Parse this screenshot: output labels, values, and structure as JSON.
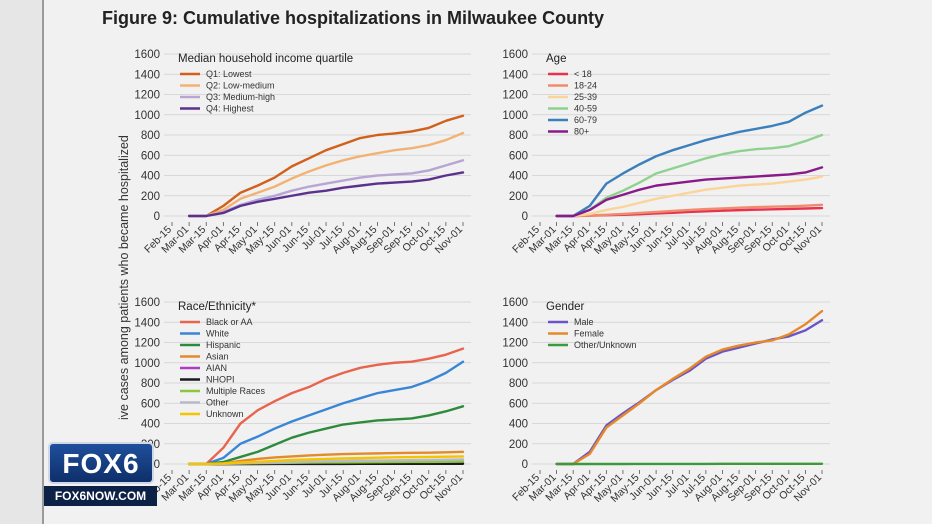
{
  "figure_title": "Figure 9: Cumulative hospitalizations in Milwaukee County",
  "y_axis_label": "ive cases among patients who became hospitalized",
  "logo": {
    "main": "FOX6",
    "sub": "FOX6NOW.COM"
  },
  "x_ticks": [
    "Feb-15",
    "Mar-01",
    "Mar-15",
    "Apr-01",
    "Apr-15",
    "May-01",
    "May-15",
    "Jun-01",
    "Jun-15",
    "Jul-01",
    "Jul-15",
    "Aug-01",
    "Aug-15",
    "Sep-01",
    "Sep-15",
    "Oct-01",
    "Oct-15",
    "Nov-01"
  ],
  "y_ticks": [
    0,
    200,
    400,
    600,
    800,
    1000,
    1200,
    1400,
    1600
  ],
  "chart_data": [
    {
      "type": "line",
      "legend_title": "Median household income quartile",
      "ylim": [
        0,
        1600
      ],
      "legend_position": "top-left",
      "grid": true,
      "series": [
        {
          "name": "Q1: Lowest",
          "color": "#d2601a",
          "x": [
            1,
            2,
            3,
            4,
            5,
            6,
            7,
            8,
            9,
            10,
            11,
            12,
            13,
            14,
            15,
            16,
            17
          ],
          "y": [
            0,
            0,
            100,
            230,
            300,
            380,
            490,
            570,
            650,
            710,
            770,
            800,
            815,
            835,
            870,
            940,
            990
          ]
        },
        {
          "name": "Q2: Low-medium",
          "color": "#f2b273",
          "x": [
            1,
            2,
            3,
            4,
            5,
            6,
            7,
            8,
            9,
            10,
            11,
            12,
            13,
            14,
            15,
            16,
            17
          ],
          "y": [
            0,
            0,
            60,
            170,
            230,
            290,
            370,
            440,
            500,
            550,
            590,
            620,
            650,
            670,
            700,
            750,
            820
          ]
        },
        {
          "name": "Q3: Medium-high",
          "color": "#b7a6d4",
          "x": [
            1,
            2,
            3,
            4,
            5,
            6,
            7,
            8,
            9,
            10,
            11,
            12,
            13,
            14,
            15,
            16,
            17
          ],
          "y": [
            0,
            0,
            40,
            110,
            160,
            200,
            250,
            290,
            320,
            350,
            380,
            400,
            410,
            420,
            450,
            500,
            550
          ]
        },
        {
          "name": "Q4: Highest",
          "color": "#5a318c",
          "x": [
            1,
            2,
            3,
            4,
            5,
            6,
            7,
            8,
            9,
            10,
            11,
            12,
            13,
            14,
            15,
            16,
            17
          ],
          "y": [
            0,
            0,
            30,
            100,
            140,
            170,
            200,
            230,
            250,
            280,
            300,
            320,
            330,
            340,
            360,
            400,
            430
          ]
        }
      ]
    },
    {
      "type": "line",
      "legend_title": "Age",
      "ylim": [
        0,
        1600
      ],
      "legend_position": "top-left",
      "grid": true,
      "series": [
        {
          "name": "< 18",
          "color": "#e6334f",
          "x": [
            1,
            2,
            3,
            4,
            5,
            6,
            7,
            8,
            9,
            10,
            11,
            12,
            13,
            14,
            15,
            16,
            17
          ],
          "y": [
            0,
            0,
            3,
            8,
            12,
            18,
            25,
            32,
            40,
            46,
            52,
            58,
            62,
            66,
            70,
            74,
            78
          ]
        },
        {
          "name": "18-24",
          "color": "#f08c6e",
          "x": [
            1,
            2,
            3,
            4,
            5,
            6,
            7,
            8,
            9,
            10,
            11,
            12,
            13,
            14,
            15,
            16,
            17
          ],
          "y": [
            0,
            0,
            5,
            12,
            20,
            30,
            40,
            50,
            60,
            68,
            75,
            82,
            88,
            92,
            96,
            102,
            110
          ]
        },
        {
          "name": "25-39",
          "color": "#fbd49a",
          "x": [
            1,
            2,
            3,
            4,
            5,
            6,
            7,
            8,
            9,
            10,
            11,
            12,
            13,
            14,
            15,
            16,
            17
          ],
          "y": [
            0,
            0,
            20,
            60,
            90,
            130,
            170,
            200,
            230,
            260,
            280,
            300,
            310,
            320,
            340,
            360,
            390
          ]
        },
        {
          "name": "40-59",
          "color": "#8fd18f",
          "x": [
            1,
            2,
            3,
            4,
            5,
            6,
            7,
            8,
            9,
            10,
            11,
            12,
            13,
            14,
            15,
            16,
            17
          ],
          "y": [
            0,
            0,
            60,
            180,
            250,
            330,
            420,
            470,
            520,
            570,
            610,
            640,
            660,
            670,
            690,
            740,
            800
          ]
        },
        {
          "name": "60-79",
          "color": "#3b7fbd",
          "x": [
            1,
            2,
            3,
            4,
            5,
            6,
            7,
            8,
            9,
            10,
            11,
            12,
            13,
            14,
            15,
            16,
            17
          ],
          "y": [
            0,
            0,
            100,
            320,
            420,
            510,
            590,
            650,
            700,
            750,
            790,
            830,
            860,
            890,
            930,
            1020,
            1090
          ]
        },
        {
          "name": "80+",
          "color": "#8a1a8a",
          "x": [
            1,
            2,
            3,
            4,
            5,
            6,
            7,
            8,
            9,
            10,
            11,
            12,
            13,
            14,
            15,
            16,
            17
          ],
          "y": [
            0,
            0,
            60,
            160,
            210,
            260,
            300,
            320,
            340,
            360,
            370,
            380,
            390,
            400,
            410,
            430,
            480
          ]
        }
      ]
    },
    {
      "type": "line",
      "legend_title": "Race/Ethnicity*",
      "ylim": [
        0,
        1600
      ],
      "legend_position": "top-left",
      "grid": true,
      "series": [
        {
          "name": "Black or AA",
          "color": "#e8644f",
          "x": [
            1,
            2,
            3,
            4,
            5,
            6,
            7,
            8,
            9,
            10,
            11,
            12,
            13,
            14,
            15,
            16,
            17
          ],
          "y": [
            0,
            0,
            160,
            400,
            530,
            620,
            700,
            760,
            840,
            900,
            950,
            980,
            1000,
            1010,
            1040,
            1080,
            1140
          ]
        },
        {
          "name": "White",
          "color": "#3a86d6",
          "x": [
            1,
            2,
            3,
            4,
            5,
            6,
            7,
            8,
            9,
            10,
            11,
            12,
            13,
            14,
            15,
            16,
            17
          ],
          "y": [
            0,
            0,
            60,
            200,
            270,
            350,
            420,
            480,
            540,
            600,
            650,
            700,
            730,
            760,
            820,
            900,
            1010
          ]
        },
        {
          "name": "Hispanic",
          "color": "#2e8b3e",
          "x": [
            1,
            2,
            3,
            4,
            5,
            6,
            7,
            8,
            9,
            10,
            11,
            12,
            13,
            14,
            15,
            16,
            17
          ],
          "y": [
            0,
            0,
            20,
            70,
            120,
            190,
            260,
            310,
            350,
            390,
            410,
            430,
            440,
            450,
            480,
            520,
            570
          ]
        },
        {
          "name": "Asian",
          "color": "#e38b2a",
          "x": [
            1,
            2,
            3,
            4,
            5,
            6,
            7,
            8,
            9,
            10,
            11,
            12,
            13,
            14,
            15,
            16,
            17
          ],
          "y": [
            0,
            0,
            5,
            30,
            50,
            65,
            75,
            85,
            92,
            98,
            102,
            105,
            108,
            110,
            112,
            115,
            120
          ]
        },
        {
          "name": "AIAN",
          "color": "#b03cc4",
          "x": [
            1,
            2,
            3,
            4,
            5,
            6,
            7,
            8,
            9,
            10,
            11,
            12,
            13,
            14,
            15,
            16,
            17
          ],
          "y": [
            0,
            0,
            0,
            1,
            2,
            3,
            4,
            5,
            5,
            6,
            6,
            7,
            7,
            8,
            8,
            9,
            10
          ]
        },
        {
          "name": "NHOPI",
          "color": "#1a1a1a",
          "x": [
            1,
            2,
            3,
            4,
            5,
            6,
            7,
            8,
            9,
            10,
            11,
            12,
            13,
            14,
            15,
            16,
            17
          ],
          "y": [
            0,
            0,
            0,
            0,
            0,
            1,
            1,
            1,
            1,
            1,
            2,
            2,
            2,
            2,
            2,
            2,
            2
          ]
        },
        {
          "name": "Multiple Races",
          "color": "#8cc63f",
          "x": [
            1,
            2,
            3,
            4,
            5,
            6,
            7,
            8,
            9,
            10,
            11,
            12,
            13,
            14,
            15,
            16,
            17
          ],
          "y": [
            0,
            0,
            2,
            5,
            8,
            10,
            12,
            14,
            15,
            16,
            17,
            18,
            19,
            20,
            21,
            22,
            24
          ]
        },
        {
          "name": "Other",
          "color": "#b8b8c8",
          "x": [
            1,
            2,
            3,
            4,
            5,
            6,
            7,
            8,
            9,
            10,
            11,
            12,
            13,
            14,
            15,
            16,
            17
          ],
          "y": [
            0,
            0,
            3,
            8,
            12,
            16,
            20,
            24,
            28,
            30,
            32,
            34,
            36,
            38,
            40,
            42,
            45
          ]
        },
        {
          "name": "Unknown",
          "color": "#f5c400",
          "x": [
            1,
            2,
            3,
            4,
            5,
            6,
            7,
            8,
            9,
            10,
            11,
            12,
            13,
            14,
            15,
            16,
            17
          ],
          "y": [
            0,
            0,
            5,
            15,
            22,
            30,
            40,
            45,
            50,
            55,
            58,
            62,
            66,
            68,
            70,
            72,
            75
          ]
        }
      ]
    },
    {
      "type": "line",
      "legend_title": "Gender",
      "ylim": [
        0,
        1600
      ],
      "legend_position": "top-left",
      "grid": true,
      "series": [
        {
          "name": "Male",
          "color": "#6a55c8",
          "x": [
            1,
            2,
            3,
            4,
            5,
            6,
            7,
            8,
            9,
            10,
            11,
            12,
            13,
            14,
            15,
            16,
            17
          ],
          "y": [
            0,
            0,
            120,
            380,
            500,
            610,
            730,
            830,
            920,
            1040,
            1110,
            1150,
            1190,
            1230,
            1260,
            1320,
            1420
          ]
        },
        {
          "name": "Female",
          "color": "#e6892a",
          "x": [
            1,
            2,
            3,
            4,
            5,
            6,
            7,
            8,
            9,
            10,
            11,
            12,
            13,
            14,
            15,
            16,
            17
          ],
          "y": [
            0,
            0,
            100,
            360,
            480,
            600,
            730,
            840,
            940,
            1060,
            1130,
            1170,
            1200,
            1220,
            1280,
            1380,
            1510
          ]
        },
        {
          "name": "Other/Unknown",
          "color": "#3b9a3b",
          "x": [
            1,
            2,
            3,
            4,
            5,
            6,
            7,
            8,
            9,
            10,
            11,
            12,
            13,
            14,
            15,
            16,
            17
          ],
          "y": [
            0,
            0,
            0,
            0,
            0,
            1,
            1,
            1,
            1,
            1,
            2,
            2,
            2,
            2,
            2,
            2,
            2
          ]
        }
      ]
    }
  ]
}
